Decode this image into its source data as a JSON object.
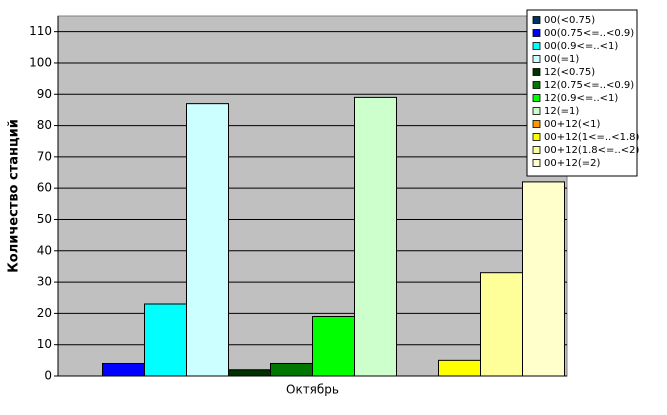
{
  "chart_data": {
    "type": "bar",
    "categories": [
      "Октябрь"
    ],
    "y_label": "Количество станций",
    "ylim": [
      0,
      115
    ],
    "yticks": [
      0,
      10,
      20,
      30,
      40,
      50,
      60,
      70,
      80,
      90,
      100,
      110
    ],
    "grid": true,
    "legend": "top-right",
    "series": [
      {
        "name": "00(<0.75)",
        "color": "#003366",
        "values": [
          0
        ]
      },
      {
        "name": "00(0.75<=..<0.9)",
        "color": "#0000ff",
        "values": [
          4
        ]
      },
      {
        "name": "00(0.9<=..<1)",
        "color": "#00ffff",
        "values": [
          23
        ]
      },
      {
        "name": "00(=1)",
        "color": "#ccffff",
        "values": [
          87
        ]
      },
      {
        "name": "12(<0.75)",
        "color": "#003300",
        "values": [
          2
        ]
      },
      {
        "name": "12(0.75<=..<0.9)",
        "color": "#007700",
        "values": [
          4
        ]
      },
      {
        "name": "12(0.9<=..<1)",
        "color": "#00ff00",
        "values": [
          19
        ]
      },
      {
        "name": "12(=1)",
        "color": "#ccffcc",
        "values": [
          89
        ]
      },
      {
        "name": "00+12(<1)",
        "color": "#ff9900",
        "values": [
          0
        ]
      },
      {
        "name": "00+12(1<=..<1.8)",
        "color": "#ffff00",
        "values": [
          5
        ]
      },
      {
        "name": "00+12(1.8<=..<2)",
        "color": "#ffff99",
        "values": [
          33
        ]
      },
      {
        "name": "00+12(=2)",
        "color": "#ffffcc",
        "values": [
          62
        ]
      }
    ]
  }
}
